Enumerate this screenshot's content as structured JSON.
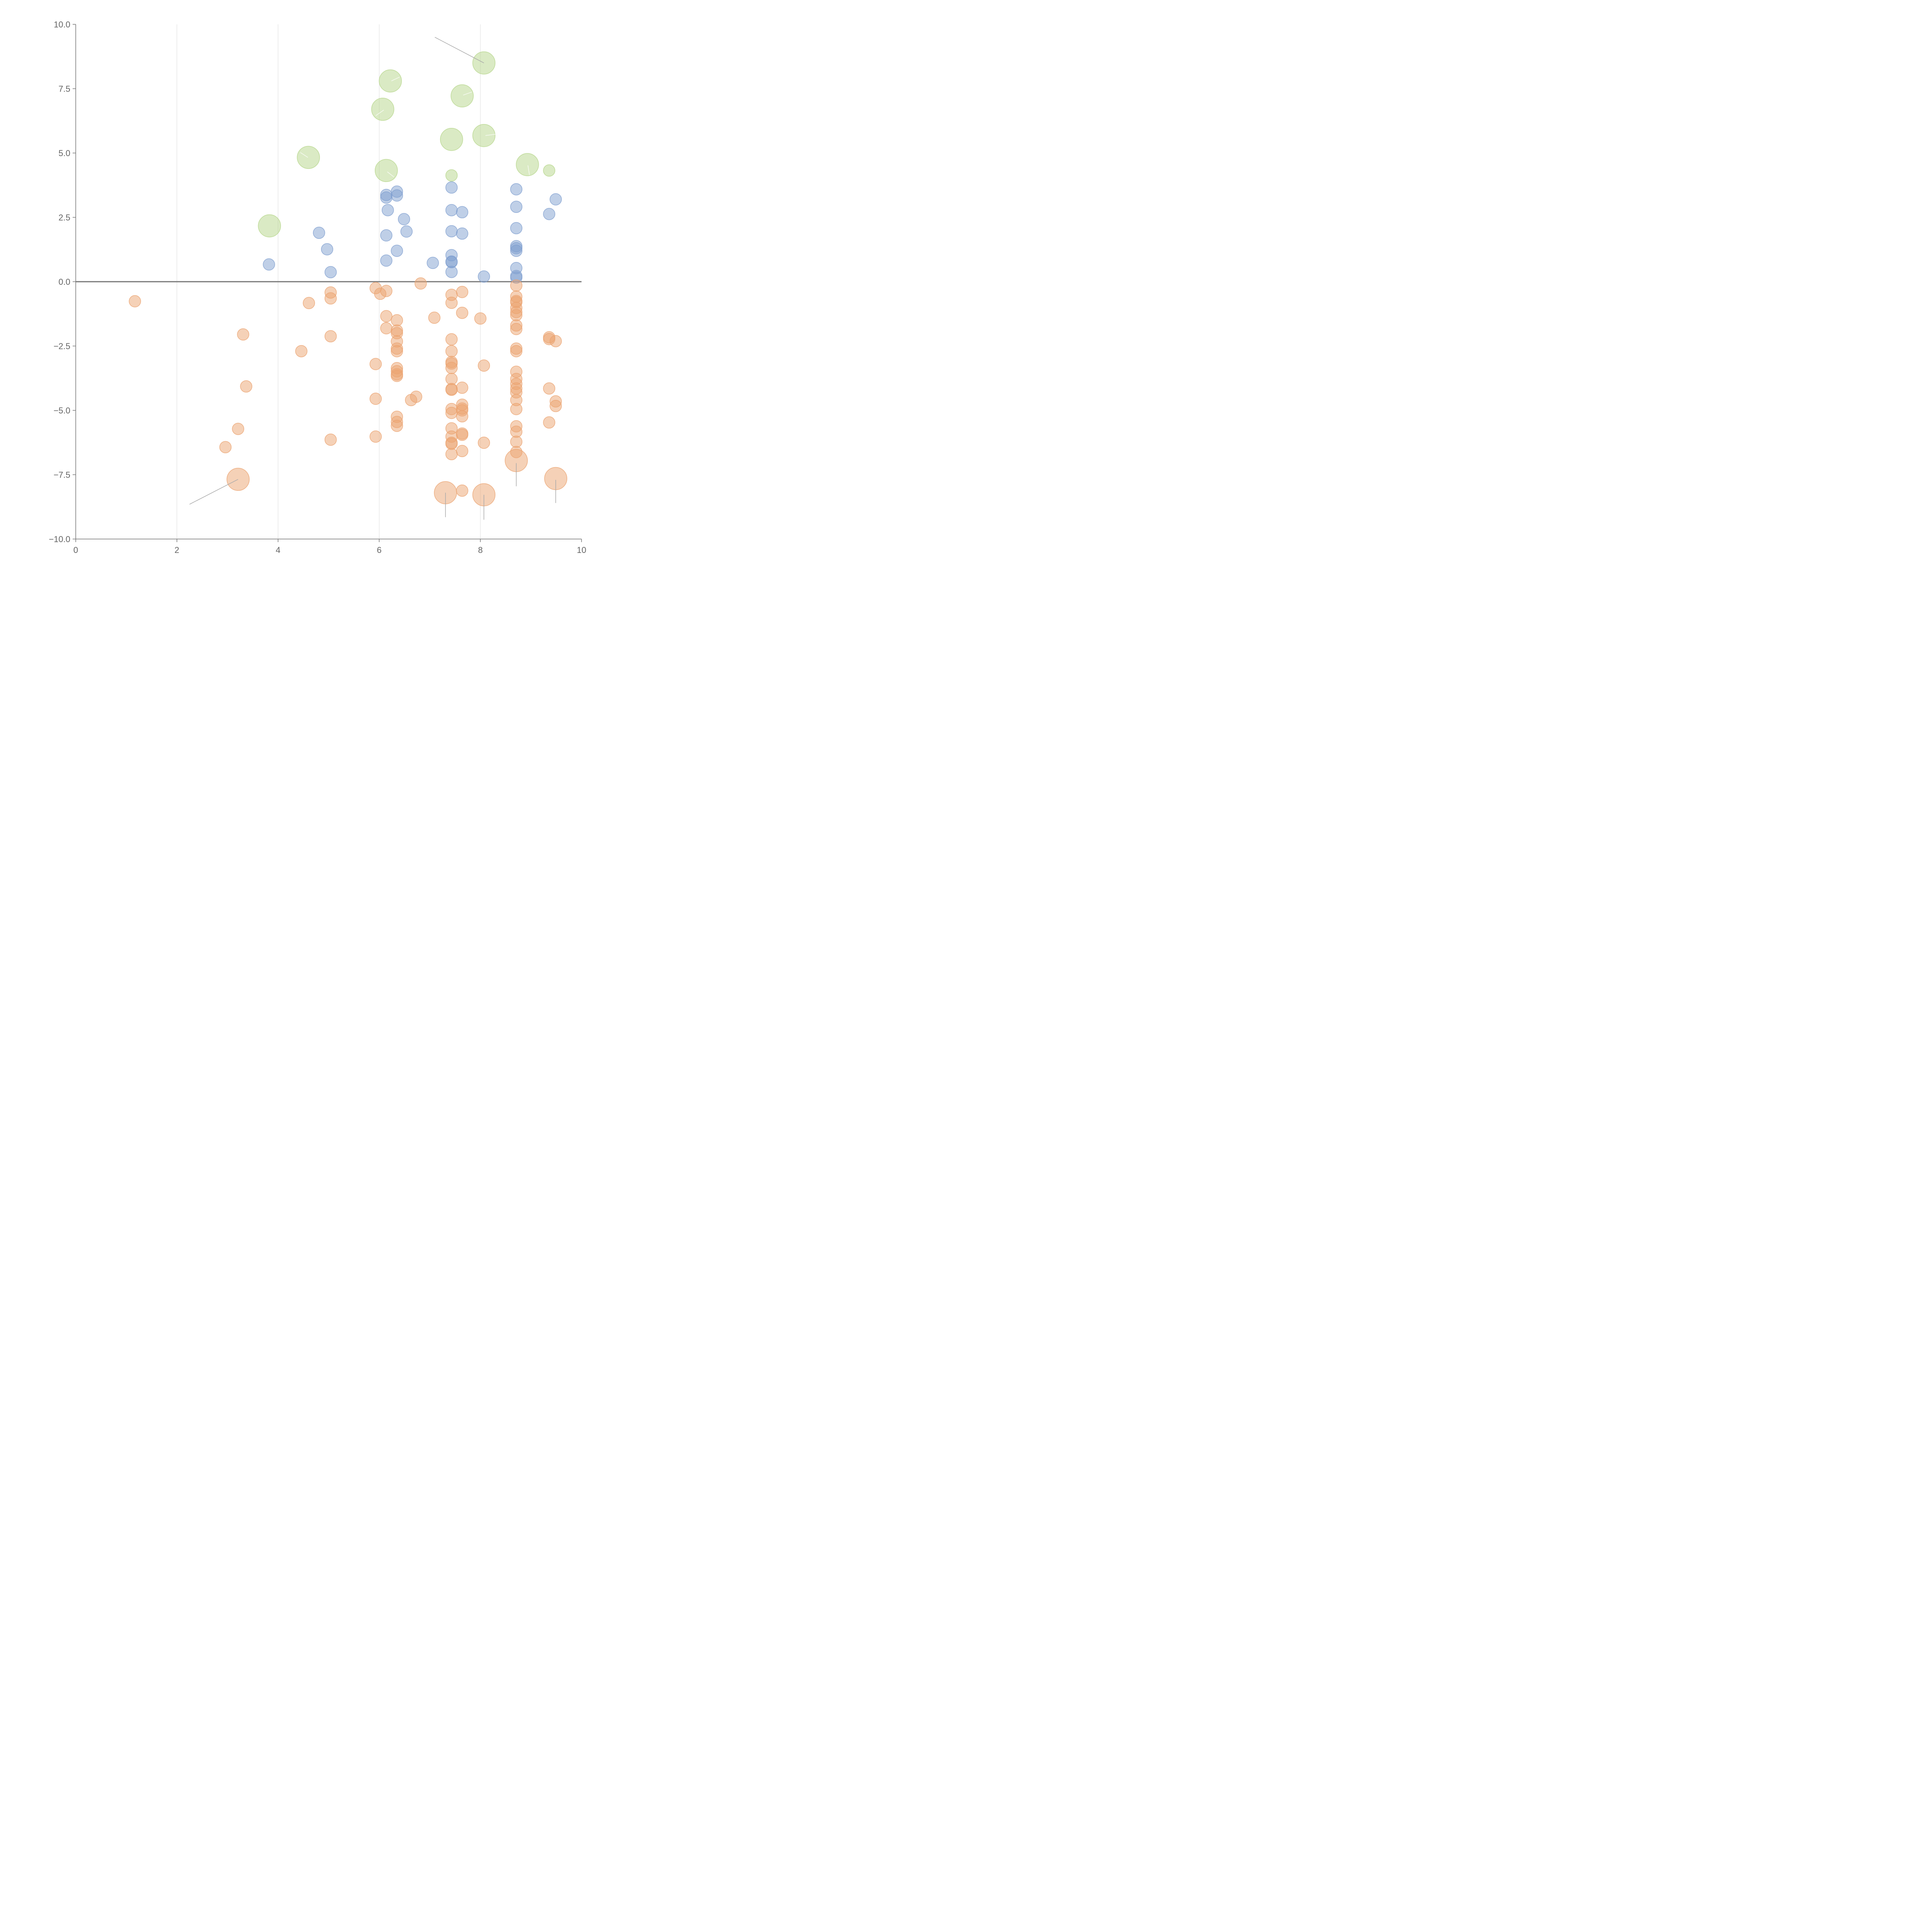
{
  "chart_data": {
    "type": "scatter",
    "title": "",
    "xlabel": "",
    "ylabel": "",
    "xlim": [
      0,
      10
    ],
    "ylim": [
      -10,
      10
    ],
    "x_ticks": [
      "0",
      "2",
      "4",
      "6",
      "8",
      "10"
    ],
    "y_ticks": [
      "10.0",
      "7.5",
      "5.0",
      "2.5",
      "0.0",
      "−2.5",
      "−5.0",
      "−7.5",
      "−10.0"
    ],
    "grid": "vertical lines at x ticks",
    "reference_line": {
      "y": 0
    },
    "colors": {
      "green": "#b5d68a",
      "blue": "#7f9fd0",
      "orange": "#eba36f",
      "axis": "#777777",
      "grid": "#dddddd",
      "leader": "#aaaaaa"
    },
    "series": [
      {
        "color_key": "green",
        "points": [
          {
            "x": 8.07,
            "y": 8.5,
            "size": "large"
          },
          {
            "x": 6.22,
            "y": 7.8,
            "size": "large"
          },
          {
            "x": 7.64,
            "y": 7.22,
            "size": "large"
          },
          {
            "x": 6.07,
            "y": 6.7,
            "size": "large"
          },
          {
            "x": 8.07,
            "y": 5.68,
            "size": "large"
          },
          {
            "x": 7.43,
            "y": 5.53,
            "size": "large"
          },
          {
            "x": 4.6,
            "y": 4.83,
            "size": "large"
          },
          {
            "x": 6.14,
            "y": 4.32,
            "size": "large"
          },
          {
            "x": 8.93,
            "y": 4.55,
            "size": "large"
          },
          {
            "x": 3.83,
            "y": 2.17,
            "size": "large"
          },
          {
            "x": 7.43,
            "y": 4.13,
            "size": "small"
          },
          {
            "x": 9.36,
            "y": 4.32,
            "size": "small"
          }
        ]
      },
      {
        "color_key": "blue",
        "points": [
          {
            "x": 3.82,
            "y": 0.67
          },
          {
            "x": 4.81,
            "y": 1.9
          },
          {
            "x": 4.97,
            "y": 1.26
          },
          {
            "x": 5.04,
            "y": 0.37
          },
          {
            "x": 6.14,
            "y": 3.37
          },
          {
            "x": 6.14,
            "y": 3.27
          },
          {
            "x": 6.35,
            "y": 3.5
          },
          {
            "x": 6.35,
            "y": 3.35
          },
          {
            "x": 6.17,
            "y": 2.78
          },
          {
            "x": 6.49,
            "y": 2.43
          },
          {
            "x": 6.54,
            "y": 1.95
          },
          {
            "x": 6.14,
            "y": 1.8
          },
          {
            "x": 6.35,
            "y": 1.2
          },
          {
            "x": 6.14,
            "y": 0.82
          },
          {
            "x": 7.06,
            "y": 0.73
          },
          {
            "x": 7.43,
            "y": 3.66
          },
          {
            "x": 7.43,
            "y": 2.78
          },
          {
            "x": 7.64,
            "y": 2.7
          },
          {
            "x": 7.43,
            "y": 1.96
          },
          {
            "x": 7.64,
            "y": 1.87
          },
          {
            "x": 7.43,
            "y": 1.03
          },
          {
            "x": 7.43,
            "y": 0.78
          },
          {
            "x": 7.43,
            "y": 0.76
          },
          {
            "x": 7.43,
            "y": 0.38
          },
          {
            "x": 8.07,
            "y": 0.2
          },
          {
            "x": 8.71,
            "y": 3.59
          },
          {
            "x": 8.71,
            "y": 2.91
          },
          {
            "x": 8.71,
            "y": 2.08
          },
          {
            "x": 8.71,
            "y": 1.38
          },
          {
            "x": 8.71,
            "y": 1.3
          },
          {
            "x": 8.71,
            "y": 1.2
          },
          {
            "x": 8.71,
            "y": 0.53
          },
          {
            "x": 8.71,
            "y": 0.22
          },
          {
            "x": 8.71,
            "y": 0.16
          },
          {
            "x": 9.36,
            "y": 2.63
          },
          {
            "x": 9.49,
            "y": 3.2
          }
        ]
      },
      {
        "color_key": "orange",
        "points": [
          {
            "x": 1.17,
            "y": -0.76
          },
          {
            "x": 3.31,
            "y": -2.05
          },
          {
            "x": 3.37,
            "y": -4.07
          },
          {
            "x": 3.21,
            "y": -5.72
          },
          {
            "x": 2.96,
            "y": -6.43
          },
          {
            "x": 4.46,
            "y": -2.7
          },
          {
            "x": 4.61,
            "y": -0.83
          },
          {
            "x": 5.04,
            "y": -0.42
          },
          {
            "x": 5.04,
            "y": -0.65
          },
          {
            "x": 5.04,
            "y": -2.12
          },
          {
            "x": 5.04,
            "y": -6.14
          },
          {
            "x": 5.93,
            "y": -0.25
          },
          {
            "x": 6.02,
            "y": -0.47
          },
          {
            "x": 6.14,
            "y": -0.36
          },
          {
            "x": 5.93,
            "y": -3.2
          },
          {
            "x": 5.93,
            "y": -4.55
          },
          {
            "x": 5.93,
            "y": -6.02
          },
          {
            "x": 6.14,
            "y": -1.34
          },
          {
            "x": 6.14,
            "y": -1.81
          },
          {
            "x": 6.35,
            "y": -1.5
          },
          {
            "x": 6.35,
            "y": -1.9
          },
          {
            "x": 6.35,
            "y": -2.0
          },
          {
            "x": 6.35,
            "y": -2.32
          },
          {
            "x": 6.35,
            "y": -2.6
          },
          {
            "x": 6.35,
            "y": -2.7
          },
          {
            "x": 6.35,
            "y": -3.36
          },
          {
            "x": 6.35,
            "y": -3.48
          },
          {
            "x": 6.35,
            "y": -3.6
          },
          {
            "x": 6.35,
            "y": -3.66
          },
          {
            "x": 6.35,
            "y": -5.25
          },
          {
            "x": 6.35,
            "y": -5.45
          },
          {
            "x": 6.35,
            "y": -5.6
          },
          {
            "x": 6.63,
            "y": -4.6
          },
          {
            "x": 6.73,
            "y": -4.47
          },
          {
            "x": 6.82,
            "y": -0.07
          },
          {
            "x": 7.09,
            "y": -1.4
          },
          {
            "x": 7.43,
            "y": -0.51
          },
          {
            "x": 7.43,
            "y": -0.82
          },
          {
            "x": 7.43,
            "y": -2.24
          },
          {
            "x": 7.43,
            "y": -2.7
          },
          {
            "x": 7.43,
            "y": -3.12
          },
          {
            "x": 7.43,
            "y": -3.18
          },
          {
            "x": 7.43,
            "y": -3.35
          },
          {
            "x": 7.43,
            "y": -3.78
          },
          {
            "x": 7.43,
            "y": -4.17
          },
          {
            "x": 7.43,
            "y": -4.2
          },
          {
            "x": 7.43,
            "y": -4.95
          },
          {
            "x": 7.43,
            "y": -5.1
          },
          {
            "x": 7.43,
            "y": -5.7
          },
          {
            "x": 7.43,
            "y": -6.02
          },
          {
            "x": 7.43,
            "y": -6.26
          },
          {
            "x": 7.43,
            "y": -6.3
          },
          {
            "x": 7.43,
            "y": -6.7
          },
          {
            "x": 7.64,
            "y": -0.4
          },
          {
            "x": 7.64,
            "y": -1.21
          },
          {
            "x": 7.64,
            "y": -4.12
          },
          {
            "x": 7.64,
            "y": -4.78
          },
          {
            "x": 7.64,
            "y": -4.93
          },
          {
            "x": 7.64,
            "y": -5.0
          },
          {
            "x": 7.64,
            "y": -5.23
          },
          {
            "x": 7.64,
            "y": -5.9
          },
          {
            "x": 7.64,
            "y": -5.95
          },
          {
            "x": 7.64,
            "y": -6.58
          },
          {
            "x": 7.64,
            "y": -8.12
          },
          {
            "x": 8.0,
            "y": -1.43
          },
          {
            "x": 8.07,
            "y": -3.26
          },
          {
            "x": 8.07,
            "y": -6.26
          },
          {
            "x": 8.71,
            "y": -0.15
          },
          {
            "x": 8.71,
            "y": -0.58
          },
          {
            "x": 8.71,
            "y": -0.75
          },
          {
            "x": 8.71,
            "y": -0.8
          },
          {
            "x": 8.71,
            "y": -1.02
          },
          {
            "x": 8.71,
            "y": -1.18
          },
          {
            "x": 8.71,
            "y": -1.3
          },
          {
            "x": 8.71,
            "y": -1.7
          },
          {
            "x": 8.71,
            "y": -1.84
          },
          {
            "x": 8.71,
            "y": -2.6
          },
          {
            "x": 8.71,
            "y": -2.7
          },
          {
            "x": 8.71,
            "y": -3.5
          },
          {
            "x": 8.71,
            "y": -3.78
          },
          {
            "x": 8.71,
            "y": -3.97
          },
          {
            "x": 8.71,
            "y": -4.15
          },
          {
            "x": 8.71,
            "y": -4.3
          },
          {
            "x": 8.71,
            "y": -4.6
          },
          {
            "x": 8.71,
            "y": -4.95
          },
          {
            "x": 8.71,
            "y": -5.62
          },
          {
            "x": 8.71,
            "y": -5.83
          },
          {
            "x": 8.71,
            "y": -6.22
          },
          {
            "x": 8.71,
            "y": -6.62
          },
          {
            "x": 9.36,
            "y": -2.16
          },
          {
            "x": 9.36,
            "y": -2.23
          },
          {
            "x": 9.36,
            "y": -4.15
          },
          {
            "x": 9.36,
            "y": -5.47
          },
          {
            "x": 9.49,
            "y": -2.31
          },
          {
            "x": 9.49,
            "y": -4.65
          },
          {
            "x": 9.49,
            "y": -4.83
          },
          {
            "x": 3.21,
            "y": -7.68,
            "size": "large"
          },
          {
            "x": 7.31,
            "y": -8.2,
            "size": "large"
          },
          {
            "x": 8.07,
            "y": -8.28,
            "size": "large"
          },
          {
            "x": 8.71,
            "y": -6.95,
            "size": "large"
          },
          {
            "x": 9.49,
            "y": -7.65,
            "size": "large"
          }
        ]
      }
    ],
    "leader_lines": [
      {
        "from": [
          8.07,
          8.5
        ],
        "to": [
          7.1,
          9.5
        ]
      },
      {
        "from": [
          3.21,
          -7.68
        ],
        "to": [
          2.25,
          -8.65
        ]
      },
      {
        "from": [
          7.31,
          -8.2
        ],
        "to": [
          7.31,
          -9.15
        ]
      },
      {
        "from": [
          8.07,
          -8.28
        ],
        "to": [
          8.07,
          -9.25
        ]
      },
      {
        "from": [
          8.71,
          -7.05
        ],
        "to": [
          8.71,
          -7.95
        ]
      },
      {
        "from": [
          9.49,
          -7.7
        ],
        "to": [
          9.49,
          -8.6
        ]
      }
    ],
    "inner_ticks": [
      {
        "from": [
          6.24,
          7.8
        ],
        "to": [
          6.4,
          7.95
        ]
      },
      {
        "from": [
          7.66,
          7.25
        ],
        "to": [
          7.83,
          7.37
        ]
      },
      {
        "from": [
          6.09,
          6.67
        ],
        "to": [
          5.93,
          6.45
        ]
      },
      {
        "from": [
          8.1,
          5.68
        ],
        "to": [
          8.3,
          5.73
        ]
      },
      {
        "from": [
          4.59,
          4.83
        ],
        "to": [
          4.44,
          5.02
        ]
      },
      {
        "from": [
          6.16,
          4.27
        ],
        "to": [
          6.29,
          4.07
        ]
      },
      {
        "from": [
          8.94,
          4.52
        ],
        "to": [
          8.97,
          4.15
        ]
      }
    ]
  }
}
